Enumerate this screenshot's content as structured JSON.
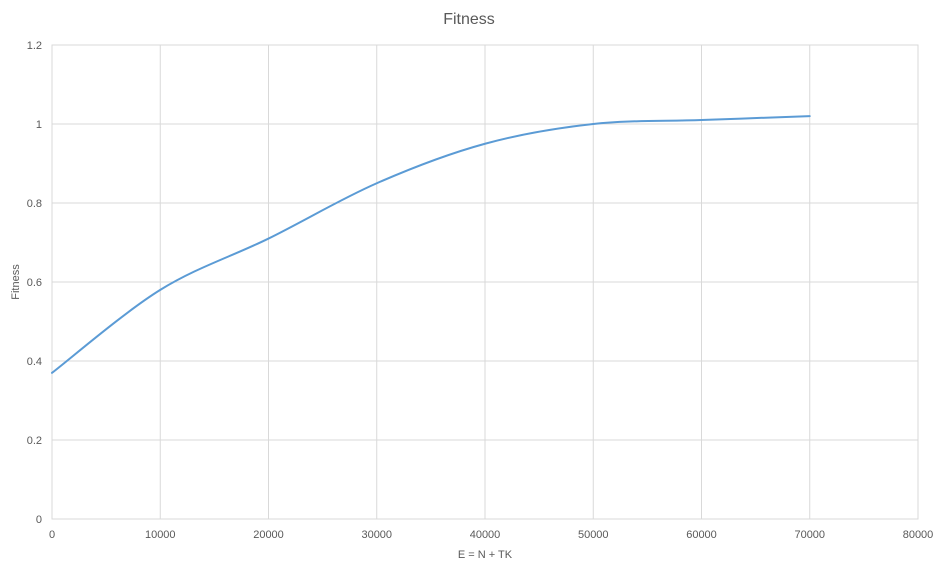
{
  "chart_data": {
    "type": "line",
    "title": "Fitness",
    "xlabel": "E = N + TK",
    "ylabel": "Fitness",
    "xlim": [
      0,
      80000
    ],
    "ylim": [
      0,
      1.2
    ],
    "x_ticks": [
      "0",
      "10000",
      "20000",
      "30000",
      "40000",
      "50000",
      "60000",
      "70000",
      "80000"
    ],
    "y_ticks": [
      "0",
      "0.2",
      "0.4",
      "0.6",
      "0.8",
      "1",
      "1.2"
    ],
    "x_tick_values": [
      0,
      10000,
      20000,
      30000,
      40000,
      50000,
      60000,
      70000,
      80000
    ],
    "y_tick_values": [
      0,
      0.2,
      0.4,
      0.6,
      0.8,
      1.0,
      1.2
    ],
    "grid": true,
    "legend": "none",
    "series": [
      {
        "color": "#5b9bd5",
        "x": [
          0,
          10000,
          20000,
          30000,
          40000,
          50000,
          60000,
          70000
        ],
        "y": [
          0.37,
          0.58,
          0.71,
          0.85,
          0.95,
          1.0,
          1.01,
          1.02
        ]
      }
    ]
  }
}
